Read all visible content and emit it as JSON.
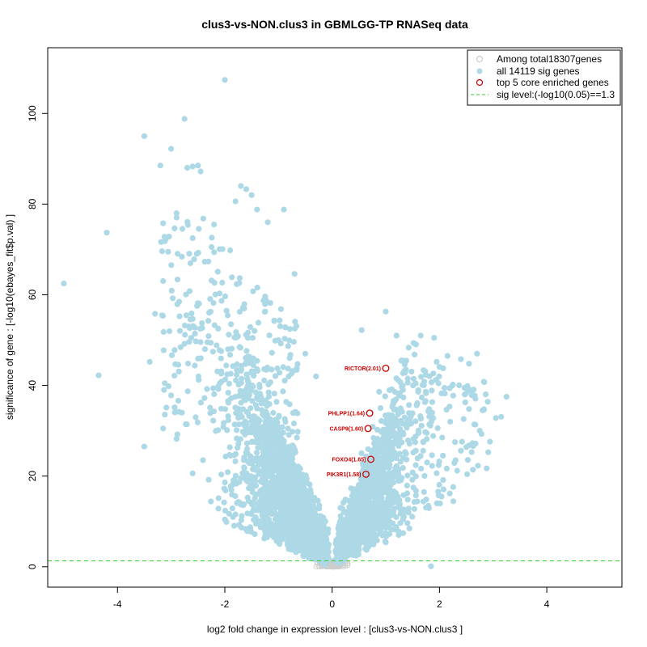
{
  "chart_data": {
    "type": "scatter",
    "title": "clus3-vs-NON.clus3 in GBMLGG-TP RNASeq data",
    "xlabel": "log2 fold change in expression level : [clus3-vs-NON.clus3 ]",
    "ylabel": "significance of gene : [-log10(ebayes_fit$p.val) ]",
    "xlim": [
      -5.3,
      5.4
    ],
    "ylim": [
      -4.5,
      114.5
    ],
    "x_ticks": [
      -4,
      -2,
      0,
      2,
      4
    ],
    "y_ticks": [
      0,
      20,
      40,
      60,
      80,
      100
    ],
    "grid": false,
    "legend_position": "top-right",
    "legend": [
      {
        "label": "Among total18307genes",
        "marker": "open-circle",
        "color": "#cccccc"
      },
      {
        "label": "all 14119 sig genes",
        "marker": "filled-circle",
        "color": "#add8e6"
      },
      {
        "label": "top 5 core enriched genes",
        "marker": "open-circle",
        "color": "#cc0000"
      },
      {
        "label": "sig level:(-log10(0.05)==1.3",
        "marker": "dashed-line",
        "color": "#33cc33"
      }
    ],
    "sig_level": 1.3,
    "colors": {
      "nonsig": "#cccccc",
      "sig": "#add8e6",
      "top": "#cc0000",
      "sigline": "#33cc33"
    },
    "highlighted_genes": [
      {
        "label": "RICTOR(2.01)",
        "x": 1.0,
        "y": 43.8
      },
      {
        "label": "PHLPP1(1.64)",
        "x": 0.7,
        "y": 33.9
      },
      {
        "label": "CASP9(1.60)",
        "x": 0.67,
        "y": 30.5
      },
      {
        "label": "FOXO4(1.65)",
        "x": 0.72,
        "y": 23.7
      },
      {
        "label": "PIK3R1(1.58)",
        "x": 0.63,
        "y": 20.4
      }
    ],
    "outlier_points": [
      [
        -5.0,
        62.5
      ],
      [
        -4.35,
        42.2
      ],
      [
        -4.2,
        73.7
      ],
      [
        -3.5,
        95.0
      ],
      [
        -3.5,
        26.5
      ],
      [
        -3.4,
        45.2
      ],
      [
        -3.3,
        55.8
      ],
      [
        -3.2,
        88.5
      ],
      [
        -3.1,
        72.3
      ],
      [
        -3.0,
        92.2
      ],
      [
        -2.9,
        78.0
      ],
      [
        -2.8,
        68.4
      ],
      [
        -2.75,
        98.8
      ],
      [
        -2.7,
        88.0
      ],
      [
        -2.6,
        88.3
      ],
      [
        -2.5,
        88.5
      ],
      [
        -2.45,
        87.2
      ],
      [
        -2.0,
        107.4
      ],
      [
        -1.8,
        80.6
      ],
      [
        -1.7,
        84.0
      ],
      [
        -1.6,
        83.3
      ],
      [
        -1.5,
        82.0
      ],
      [
        -1.4,
        78.8
      ],
      [
        -0.9,
        78.8
      ],
      [
        -1.2,
        76.0
      ],
      [
        -0.7,
        64.6
      ],
      [
        -2.4,
        76.8
      ],
      [
        -2.2,
        75.5
      ],
      [
        -1.9,
        69.8
      ],
      [
        -2.6,
        72.5
      ],
      [
        1.0,
        56.3
      ],
      [
        0.55,
        52.2
      ],
      [
        1.2,
        51.0
      ],
      [
        1.65,
        51.0
      ],
      [
        1.9,
        50.5
      ],
      [
        2.15,
        46.5
      ],
      [
        2.4,
        45.8
      ],
      [
        2.55,
        44.8
      ],
      [
        2.7,
        47.0
      ],
      [
        3.25,
        37.5
      ],
      [
        3.15,
        33.1
      ],
      [
        3.05,
        32.8
      ],
      [
        2.9,
        36.4
      ],
      [
        2.55,
        34.8
      ],
      [
        2.45,
        32.6
      ],
      [
        2.2,
        32.0
      ],
      [
        2.75,
        30.0
      ],
      [
        2.5,
        26.4
      ],
      [
        2.6,
        25.3
      ],
      [
        2.4,
        25.6
      ],
      [
        2.3,
        23.5
      ],
      [
        2.05,
        28.5
      ],
      [
        1.85,
        32.0
      ],
      [
        1.7,
        27.6
      ],
      [
        1.5,
        20.8
      ],
      [
        1.7,
        14.4
      ],
      [
        1.4,
        16.2
      ],
      [
        2.25,
        40.2
      ],
      [
        2.0,
        44.1
      ],
      [
        1.75,
        38.3
      ],
      [
        -1.0,
        50.0
      ],
      [
        -0.5,
        47.0
      ],
      [
        -0.3,
        42.0
      ],
      [
        -3.0,
        37.8
      ],
      [
        -2.8,
        34.0
      ],
      [
        -3.15,
        30.5
      ],
      [
        -2.9,
        28.2
      ],
      [
        -2.6,
        20.6
      ],
      [
        -2.3,
        19.2
      ],
      [
        -2.0,
        18.6
      ]
    ]
  }
}
